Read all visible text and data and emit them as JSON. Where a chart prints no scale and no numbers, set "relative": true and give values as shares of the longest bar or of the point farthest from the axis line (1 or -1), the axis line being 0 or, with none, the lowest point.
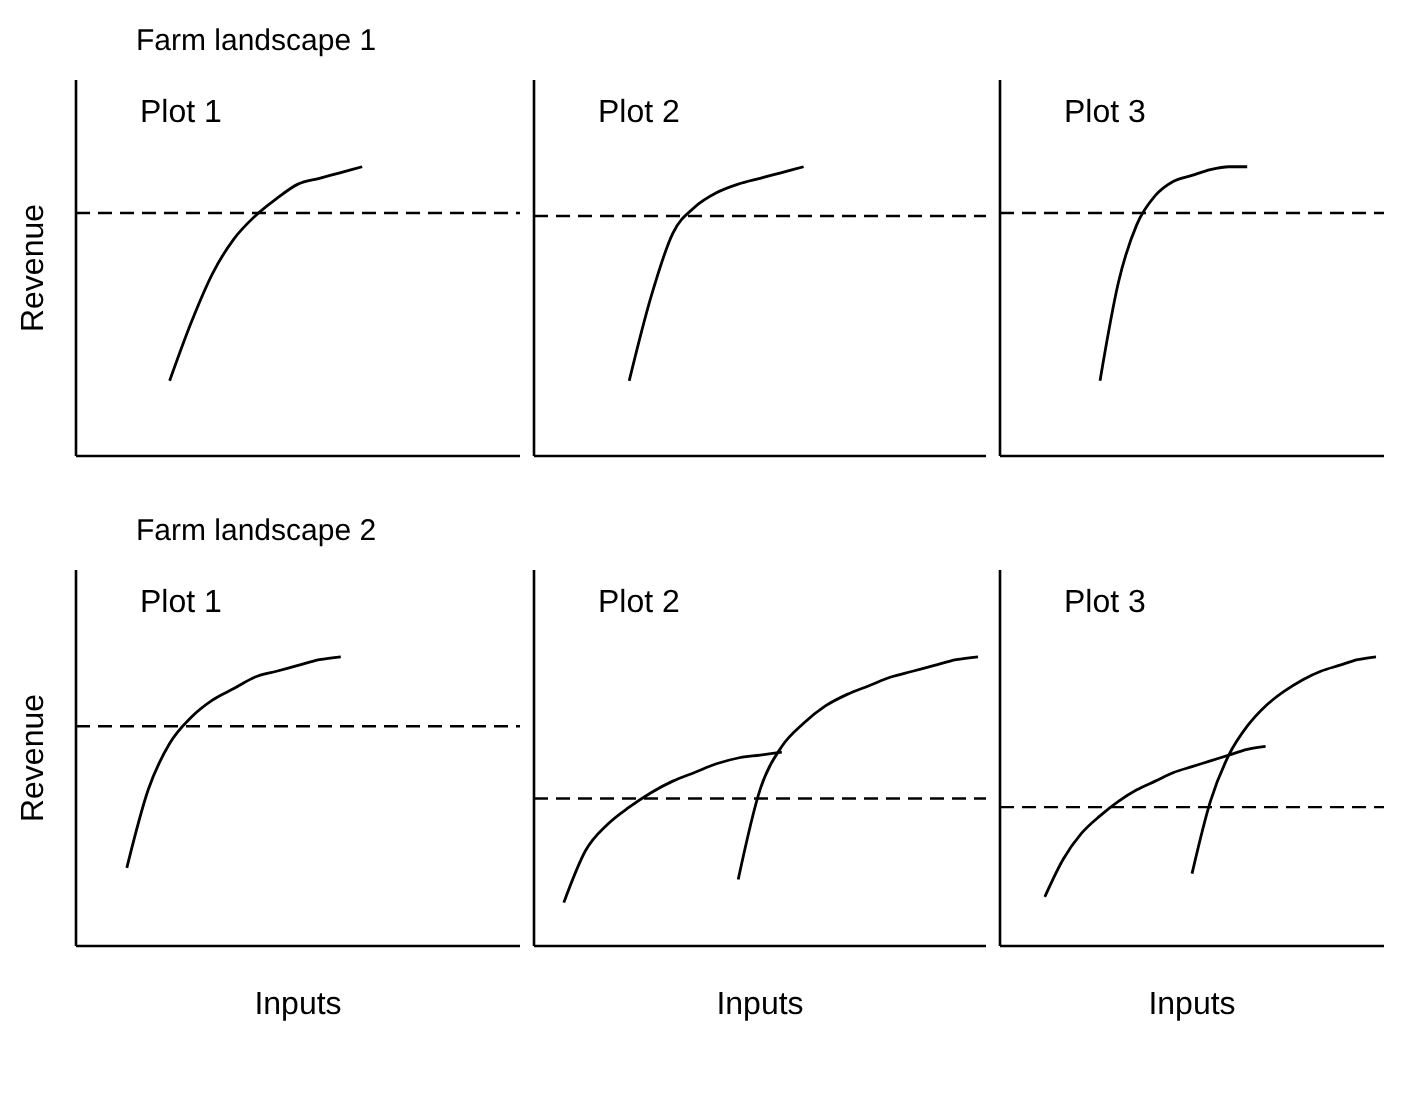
{
  "chart_data": [
    {
      "type": "line",
      "relative": true,
      "title": "Plot 1",
      "ylabel": "Revenue",
      "annotations": [
        "Farm landscape 1"
      ],
      "tick_labels": false,
      "marker": "none",
      "categories": [
        null,
        null,
        null,
        null,
        null,
        null,
        null,
        null,
        null,
        null,
        null,
        null,
        null,
        null,
        null,
        null,
        null,
        null,
        null,
        null,
        null
      ],
      "series": [
        {
          "color": "#000000",
          "line_style": "solid",
          "values": [
            null,
            null,
            null,
            null,
            0.26,
            0.46,
            0.63,
            0.75,
            0.83,
            0.89,
            0.94,
            0.96,
            0.98,
            1,
            null,
            null,
            null,
            null,
            null,
            null,
            null
          ]
        }
      ],
      "ref_lines": [
        {
          "axis": "y",
          "value": 0.84,
          "color": "#000000",
          "line_style": "dashed"
        }
      ]
    },
    {
      "type": "line",
      "relative": true,
      "title": "Plot 2",
      "tick_labels": false,
      "marker": "none",
      "categories": [
        null,
        null,
        null,
        null,
        null,
        null,
        null,
        null,
        null,
        null,
        null,
        null,
        null,
        null,
        null,
        null,
        null,
        null,
        null,
        null,
        null
      ],
      "series": [
        {
          "color": "#000000",
          "line_style": "solid",
          "values": [
            null,
            null,
            null,
            null,
            0.26,
            0.55,
            0.77,
            0.86,
            0.91,
            0.94,
            0.96,
            0.98,
            1,
            null,
            null,
            null,
            null,
            null,
            null,
            null,
            null
          ]
        }
      ],
      "ref_lines": [
        {
          "axis": "y",
          "value": 0.83,
          "color": "#000000",
          "line_style": "dashed"
        }
      ]
    },
    {
      "type": "line",
      "relative": true,
      "title": "Plot 3",
      "tick_labels": false,
      "marker": "none",
      "categories": [
        null,
        null,
        null,
        null,
        null,
        null,
        null,
        null,
        null,
        null,
        null,
        null,
        null,
        null,
        null,
        null,
        null,
        null,
        null,
        null,
        null
      ],
      "series": [
        {
          "color": "#000000",
          "line_style": "solid",
          "values": [
            null,
            null,
            null,
            null,
            null,
            0.26,
            0.6,
            0.8,
            0.9,
            0.95,
            0.97,
            0.99,
            1,
            1,
            null,
            null,
            null,
            null,
            null,
            null,
            null
          ]
        }
      ],
      "ref_lines": [
        {
          "axis": "y",
          "value": 0.84,
          "color": "#000000",
          "line_style": "dashed"
        }
      ]
    },
    {
      "type": "line",
      "relative": true,
      "title": "Plot 1",
      "ylabel": "Revenue",
      "xlabel": "Inputs",
      "annotations": [
        "Farm landscape 2"
      ],
      "tick_labels": false,
      "marker": "none",
      "categories": [
        null,
        null,
        null,
        null,
        null,
        null,
        null,
        null,
        null,
        null,
        null,
        null,
        null,
        null,
        null,
        null,
        null,
        null,
        null,
        null,
        null
      ],
      "series": [
        {
          "color": "#000000",
          "line_style": "solid",
          "values": [
            null,
            null,
            0.27,
            0.54,
            0.7,
            0.79,
            0.85,
            0.89,
            0.93,
            0.95,
            0.97,
            0.99,
            1,
            null,
            null,
            null,
            null,
            null,
            null,
            null,
            null
          ]
        }
      ],
      "ref_lines": [
        {
          "axis": "y",
          "value": 0.76,
          "color": "#000000",
          "line_style": "dashed"
        }
      ]
    },
    {
      "type": "line",
      "relative": true,
      "title": "Plot 2",
      "xlabel": "Inputs",
      "tick_labels": false,
      "marker": "none",
      "categories": [
        null,
        null,
        null,
        null,
        null,
        null,
        null,
        null,
        null,
        null,
        null,
        null,
        null,
        null,
        null,
        null,
        null,
        null,
        null,
        null,
        null
      ],
      "series": [
        {
          "color": "#000000",
          "line_style": "solid",
          "values": [
            null,
            0.15,
            0.33,
            0.42,
            0.48,
            0.53,
            0.57,
            0.6,
            0.63,
            0.65,
            0.66,
            0.67,
            null,
            null,
            null,
            null,
            null,
            null,
            null,
            null,
            null
          ]
        },
        {
          "color": "#000000",
          "line_style": "solid",
          "values": [
            null,
            null,
            null,
            null,
            null,
            null,
            null,
            null,
            null,
            0.23,
            0.54,
            0.69,
            0.77,
            0.83,
            0.87,
            0.9,
            0.93,
            0.95,
            0.97,
            0.99,
            1
          ]
        }
      ],
      "ref_lines": [
        {
          "axis": "y",
          "value": 0.51,
          "color": "#000000",
          "line_style": "dashed"
        }
      ]
    },
    {
      "type": "line",
      "relative": true,
      "title": "Plot 3",
      "xlabel": "Inputs",
      "tick_labels": false,
      "marker": "none",
      "categories": [
        null,
        null,
        null,
        null,
        null,
        null,
        null,
        null,
        null,
        null,
        null,
        null,
        null,
        null,
        null,
        null,
        null,
        null,
        null,
        null,
        null
      ],
      "series": [
        {
          "color": "#000000",
          "line_style": "solid",
          "values": [
            null,
            null,
            0.17,
            0.3,
            0.39,
            0.45,
            0.5,
            0.54,
            0.57,
            0.6,
            0.62,
            0.64,
            0.66,
            0.68,
            0.69,
            null,
            null,
            null,
            null,
            null,
            null
          ]
        },
        {
          "color": "#000000",
          "line_style": "solid",
          "values": [
            null,
            null,
            null,
            null,
            null,
            null,
            null,
            null,
            null,
            null,
            0.25,
            0.5,
            0.66,
            0.76,
            0.83,
            0.88,
            0.92,
            0.95,
            0.97,
            0.99,
            1
          ]
        }
      ],
      "ref_lines": [
        {
          "axis": "y",
          "value": 0.48,
          "color": "#000000",
          "line_style": "dashed"
        }
      ]
    }
  ]
}
